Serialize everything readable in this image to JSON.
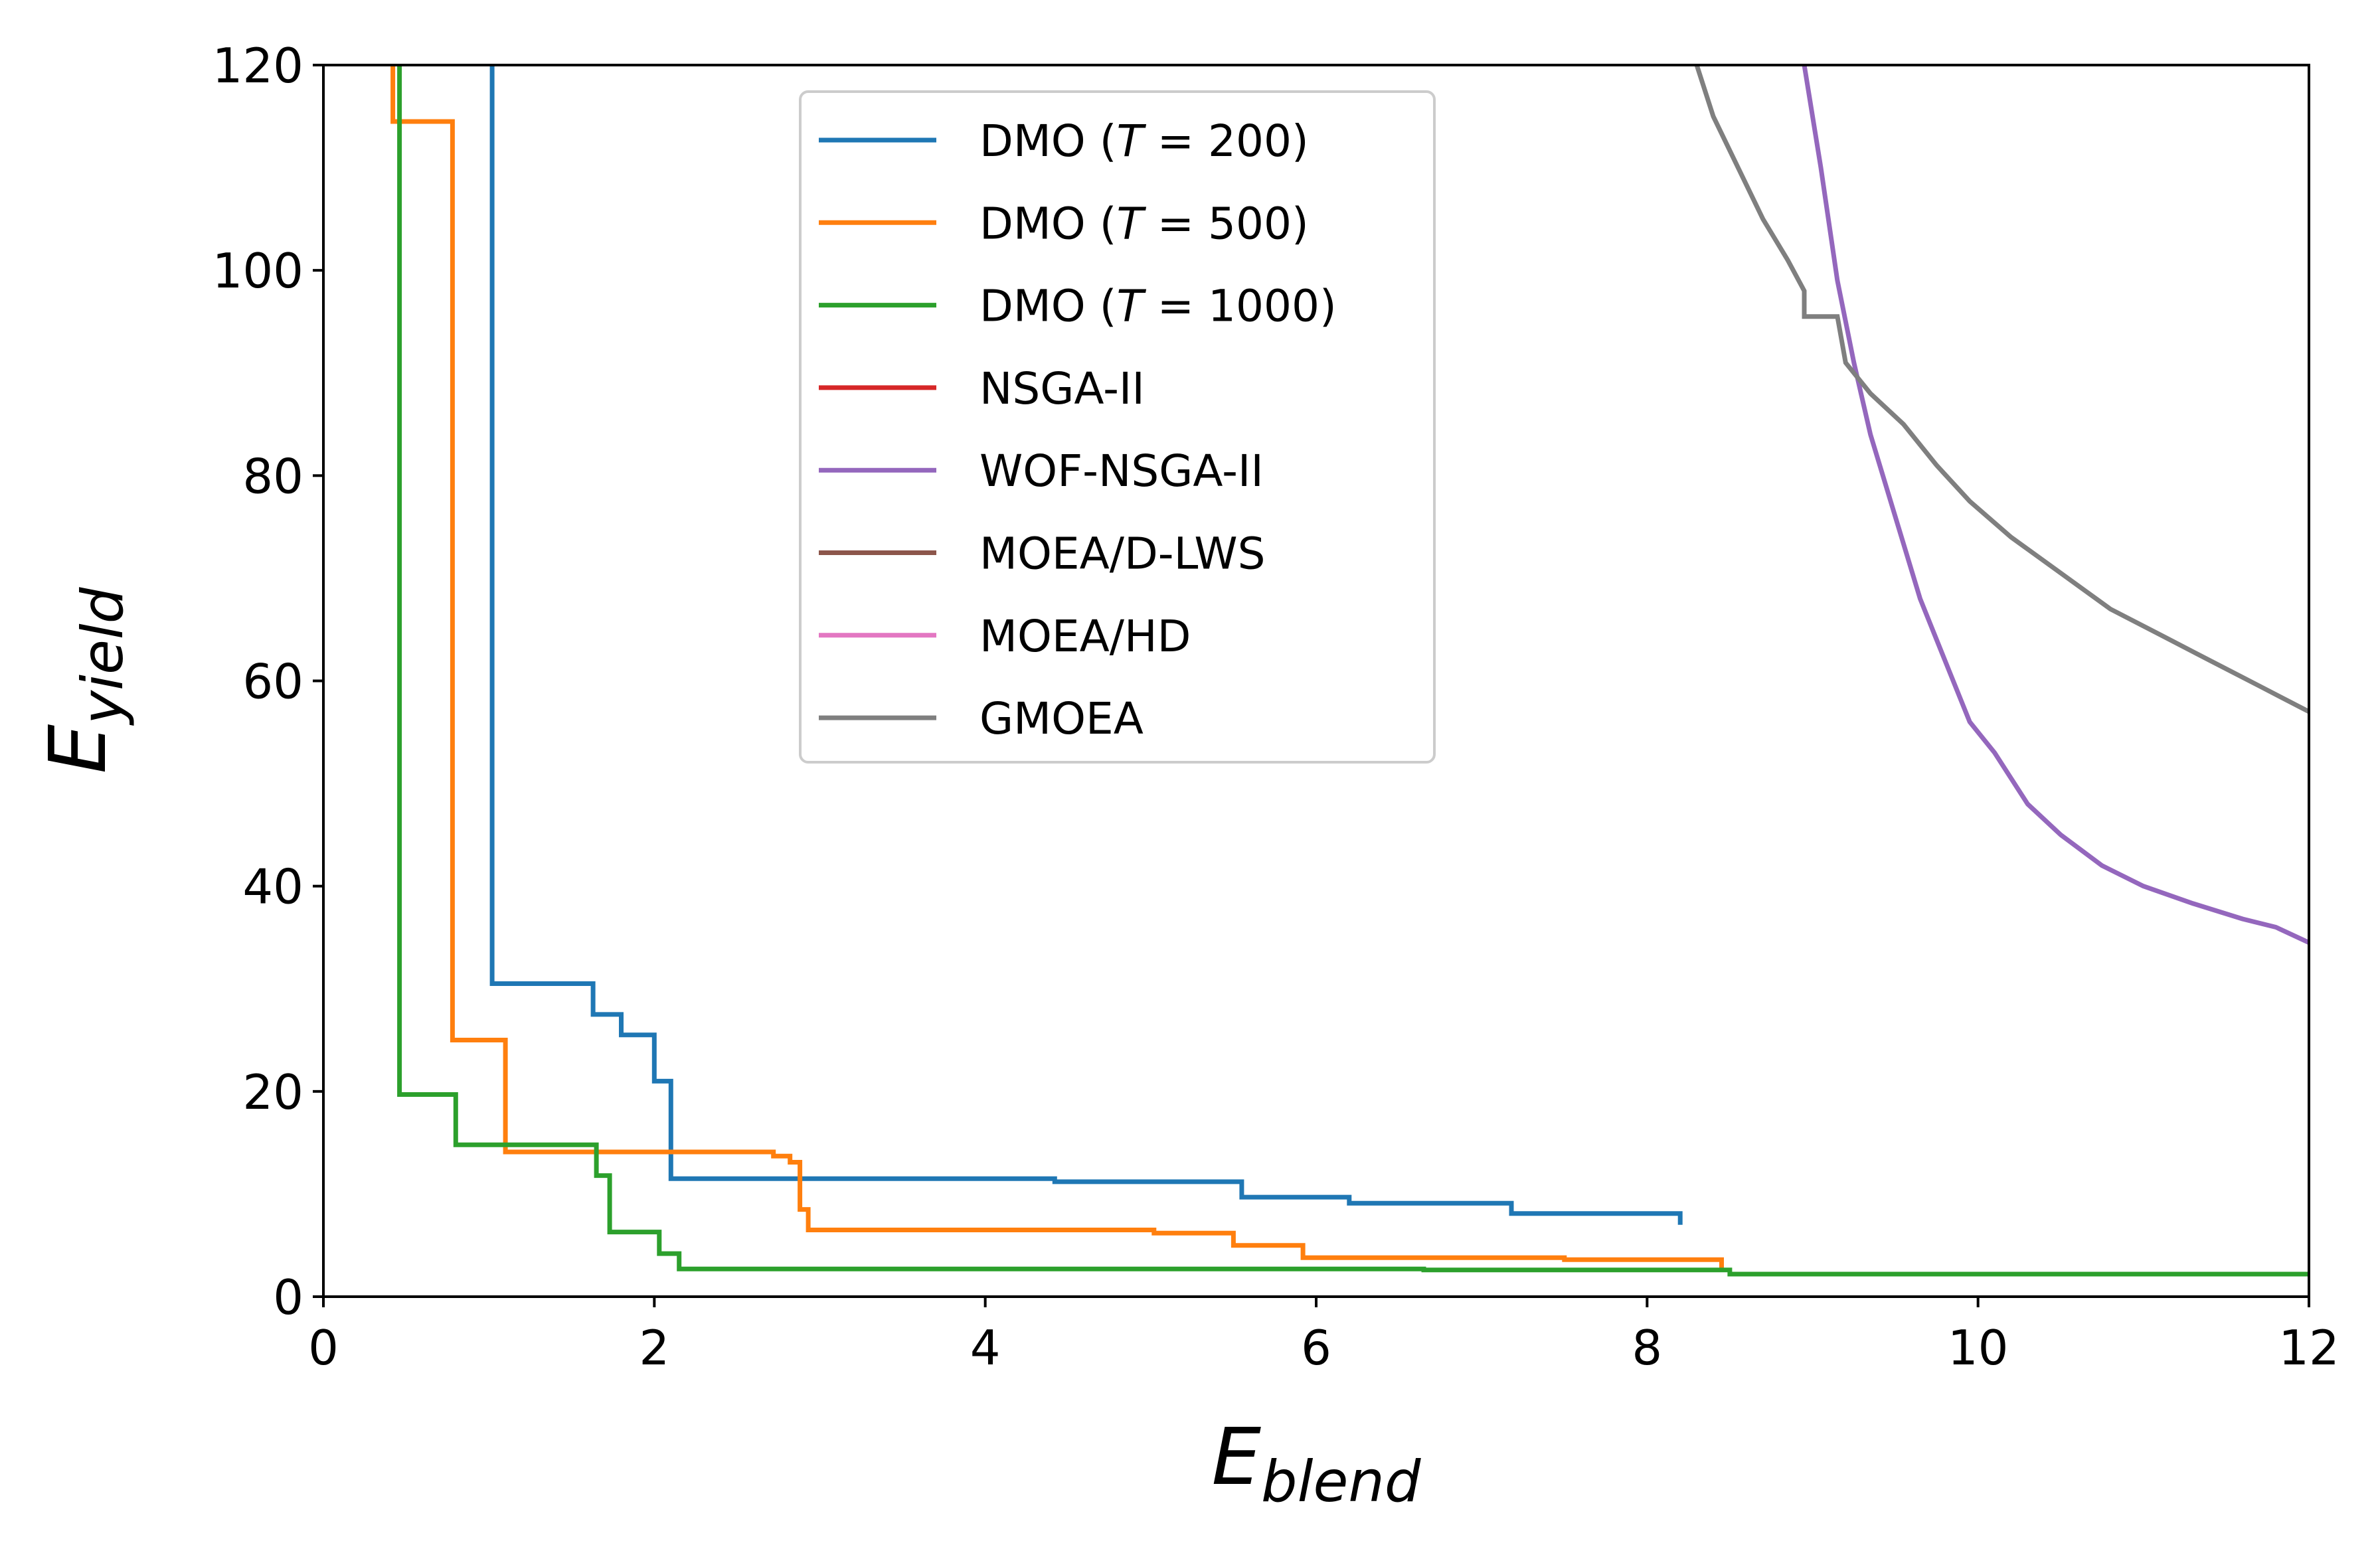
{
  "chart_data": {
    "type": "line",
    "title": "",
    "xlabel": {
      "base": "E",
      "sub": "blend"
    },
    "ylabel": {
      "base": "E",
      "sub": "yield"
    },
    "xlim": [
      0,
      12
    ],
    "ylim": [
      0,
      120
    ],
    "xticks": [
      0,
      2,
      4,
      6,
      8,
      10,
      12
    ],
    "yticks": [
      0,
      20,
      40,
      60,
      80,
      100,
      120
    ],
    "xtick_labels": [
      "0",
      "2",
      "4",
      "6",
      "8",
      "10",
      "12"
    ],
    "ytick_labels": [
      "0",
      "20",
      "40",
      "60",
      "80",
      "100",
      "120"
    ],
    "grid": false,
    "legend_position": "top-center",
    "series": [
      {
        "name": "DMO (T = 200)",
        "label_prefix": "DMO (",
        "label_var": "T",
        "label_rest": " = 200)",
        "color": "#1f77b4",
        "step": true,
        "points": [
          [
            1.02,
            120
          ],
          [
            1.02,
            30.5
          ],
          [
            1.63,
            30.5
          ],
          [
            1.63,
            27.5
          ],
          [
            1.8,
            27.5
          ],
          [
            1.8,
            25.5
          ],
          [
            2.0,
            25.5
          ],
          [
            2.0,
            21.0
          ],
          [
            2.1,
            21.0
          ],
          [
            2.1,
            11.5
          ],
          [
            4.42,
            11.5
          ],
          [
            4.42,
            11.2
          ],
          [
            5.55,
            11.2
          ],
          [
            5.55,
            9.7
          ],
          [
            6.2,
            9.7
          ],
          [
            6.2,
            9.1
          ],
          [
            7.18,
            9.1
          ],
          [
            7.18,
            8.1
          ],
          [
            8.2,
            8.1
          ],
          [
            8.2,
            7.0
          ]
        ]
      },
      {
        "name": "DMO (T = 500)",
        "label_prefix": "DMO (",
        "label_var": "T",
        "label_rest": " = 500)",
        "color": "#ff7f0e",
        "step": true,
        "points": [
          [
            0.42,
            120
          ],
          [
            0.42,
            114.5
          ],
          [
            0.78,
            114.5
          ],
          [
            0.78,
            25.0
          ],
          [
            1.1,
            25.0
          ],
          [
            1.1,
            14.1
          ],
          [
            2.72,
            14.1
          ],
          [
            2.72,
            13.7
          ],
          [
            2.82,
            13.7
          ],
          [
            2.82,
            13.1
          ],
          [
            2.88,
            13.1
          ],
          [
            2.88,
            8.5
          ],
          [
            2.93,
            8.5
          ],
          [
            2.93,
            6.5
          ],
          [
            5.02,
            6.5
          ],
          [
            5.02,
            6.2
          ],
          [
            5.5,
            6.2
          ],
          [
            5.5,
            5.0
          ],
          [
            5.92,
            5.0
          ],
          [
            5.92,
            3.8
          ],
          [
            7.5,
            3.8
          ],
          [
            7.5,
            3.6
          ],
          [
            8.45,
            3.6
          ],
          [
            8.45,
            2.6
          ]
        ]
      },
      {
        "name": "DMO (T = 1000)",
        "label_prefix": "DMO (",
        "label_var": "T",
        "label_rest": " = 1000)",
        "color": "#2ca02c",
        "step": true,
        "points": [
          [
            0.46,
            120
          ],
          [
            0.46,
            19.7
          ],
          [
            0.8,
            19.7
          ],
          [
            0.8,
            14.8
          ],
          [
            1.65,
            14.8
          ],
          [
            1.65,
            11.8
          ],
          [
            1.73,
            11.8
          ],
          [
            1.73,
            6.3
          ],
          [
            2.03,
            6.3
          ],
          [
            2.03,
            4.2
          ],
          [
            2.15,
            4.2
          ],
          [
            2.15,
            2.7
          ],
          [
            6.65,
            2.7
          ],
          [
            6.65,
            2.6
          ],
          [
            8.5,
            2.6
          ],
          [
            8.5,
            2.2
          ],
          [
            12.0,
            2.2
          ]
        ]
      },
      {
        "name": "NSGA-II",
        "label_prefix": "NSGA-II",
        "label_var": "",
        "label_rest": "",
        "color": "#d62728",
        "step": false,
        "points": []
      },
      {
        "name": "WOF-NSGA-II",
        "label_prefix": "WOF-NSGA-II",
        "label_var": "",
        "label_rest": "",
        "color": "#9467bd",
        "step": false,
        "points": [
          [
            8.95,
            120
          ],
          [
            9.05,
            110
          ],
          [
            9.15,
            99
          ],
          [
            9.25,
            91
          ],
          [
            9.35,
            84
          ],
          [
            9.5,
            76
          ],
          [
            9.65,
            68
          ],
          [
            9.8,
            62
          ],
          [
            9.95,
            56
          ],
          [
            10.1,
            53
          ],
          [
            10.3,
            48
          ],
          [
            10.5,
            45
          ],
          [
            10.75,
            42
          ],
          [
            11.0,
            40
          ],
          [
            11.3,
            38.3
          ],
          [
            11.6,
            36.8
          ],
          [
            11.8,
            36.0
          ],
          [
            12.0,
            34.5
          ]
        ]
      },
      {
        "name": "MOEA/D-LWS",
        "label_prefix": "MOEA/D-LWS",
        "label_var": "",
        "label_rest": "",
        "color": "#8c564b",
        "step": false,
        "points": []
      },
      {
        "name": "MOEA/HD",
        "label_prefix": "MOEA/HD",
        "label_var": "",
        "label_rest": "",
        "color": "#e377c2",
        "step": false,
        "points": []
      },
      {
        "name": "GMOEA",
        "label_prefix": "GMOEA",
        "label_var": "",
        "label_rest": "",
        "color": "#7f7f7f",
        "step": true,
        "points": [
          [
            8.3,
            120
          ],
          [
            8.4,
            115
          ],
          [
            8.55,
            110
          ],
          [
            8.7,
            105
          ],
          [
            8.85,
            101
          ],
          [
            8.95,
            98
          ],
          [
            8.95,
            95.5
          ],
          [
            9.15,
            95.5
          ],
          [
            9.2,
            91
          ],
          [
            9.35,
            88
          ],
          [
            9.55,
            85
          ],
          [
            9.75,
            81
          ],
          [
            9.95,
            77.5
          ],
          [
            10.2,
            74
          ],
          [
            10.5,
            70.5
          ],
          [
            10.8,
            67
          ],
          [
            11.1,
            64.5
          ],
          [
            11.4,
            62
          ],
          [
            11.7,
            59.5
          ],
          [
            12.0,
            57.0
          ]
        ]
      }
    ]
  }
}
